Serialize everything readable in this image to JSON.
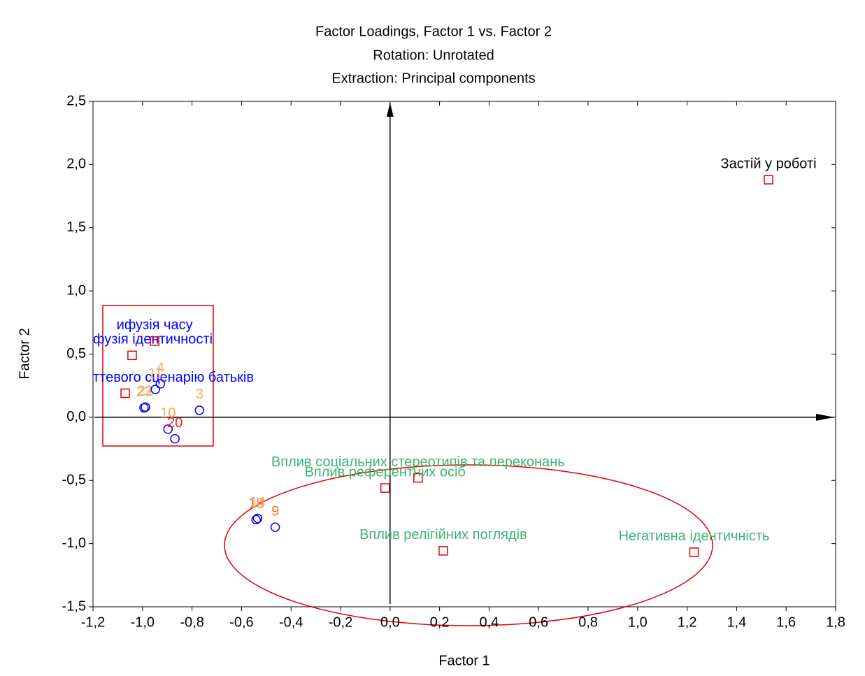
{
  "chart_data": {
    "type": "scatter",
    "title": [
      "Factor Loadings, Factor 1 vs. Factor 2",
      "Rotation: Unrotated",
      "Extraction: Principal components"
    ],
    "x_label": "Factor 1",
    "y_label": "Factor 2",
    "xlim": [
      -1.2,
      1.8
    ],
    "ylim": [
      -1.5,
      2.5
    ],
    "xticks": [
      {
        "value": -1.2,
        "label": "-1,2"
      },
      {
        "value": -1.0,
        "label": "-1,0"
      },
      {
        "value": -0.8,
        "label": "-0,8"
      },
      {
        "value": -0.6,
        "label": "-0,6"
      },
      {
        "value": -0.4,
        "label": "-0,4"
      },
      {
        "value": -0.2,
        "label": "-0,2"
      },
      {
        "value": 0,
        "label": "0,0"
      },
      {
        "value": 0.2,
        "label": "0,2"
      },
      {
        "value": 0.4,
        "label": "0,4"
      },
      {
        "value": 0.6,
        "label": "0,6"
      },
      {
        "value": 0.8,
        "label": "0,8"
      },
      {
        "value": 1.0,
        "label": "1,0"
      },
      {
        "value": 1.2,
        "label": "1,2"
      },
      {
        "value": 1.4,
        "label": "1,4"
      },
      {
        "value": 1.6,
        "label": "1,6"
      },
      {
        "value": 1.8,
        "label": "1,8"
      }
    ],
    "yticks": [
      {
        "value": -1.5,
        "label": "-1,5"
      },
      {
        "value": -1.0,
        "label": "-1,0"
      },
      {
        "value": -0.5,
        "label": "-0,5"
      },
      {
        "value": 0,
        "label": "0,0"
      },
      {
        "value": 0.5,
        "label": "0,5"
      },
      {
        "value": 1.0,
        "label": "1,0"
      },
      {
        "value": 1.5,
        "label": "1,5"
      },
      {
        "value": 2.0,
        "label": "2,0"
      },
      {
        "value": 2.5,
        "label": "2,5"
      }
    ],
    "grid": false,
    "series": [
      {
        "marker": "square",
        "color": "#e00000",
        "x": [
          1.529,
          1.228,
          0.215,
          0.113,
          -0.02,
          -1.042,
          -0.951,
          -1.07
        ],
        "y": [
          1.88,
          -1.068,
          -1.057,
          -0.48,
          -0.56,
          0.49,
          0.603,
          0.19
        ],
        "labels": [
          "Застій у роботі",
          "Негативна ідентичність",
          "Вплив релігійних поглядів",
          "Вплив соціальних стереотипів та переконань",
          "Вплив референтних осіб",
          "фузія ідентичності",
          "ифузія часу",
          "ттевого сценарію батьків"
        ],
        "label_colors": [
          "#000000",
          "#3cb371",
          "#3cb371",
          "#3cb371",
          "#3cb371",
          "#0000ff",
          "#0000ff",
          "#0000ff"
        ]
      },
      {
        "marker": "circle",
        "color": "#0000ff",
        "x": [
          -0.77,
          -0.897,
          -0.869,
          -0.988,
          -0.994,
          -0.948,
          -0.928,
          -0.541,
          -0.535,
          -0.464
        ],
        "y": [
          0.055,
          -0.094,
          -0.17,
          0.08,
          0.075,
          0.22,
          0.265,
          -0.81,
          -0.8,
          -0.87
        ],
        "labels": [
          "3",
          "10",
          "20",
          "22",
          "23",
          "11",
          "4",
          "18",
          "14",
          "9"
        ],
        "label_colors": [
          "#f5a860",
          "#f5a860",
          "#ff2020",
          "#f5a860",
          "#f5a860",
          "#f5a860",
          "#f5a860",
          "#e8803a",
          "#f0a050",
          "#e8803a"
        ]
      }
    ]
  }
}
